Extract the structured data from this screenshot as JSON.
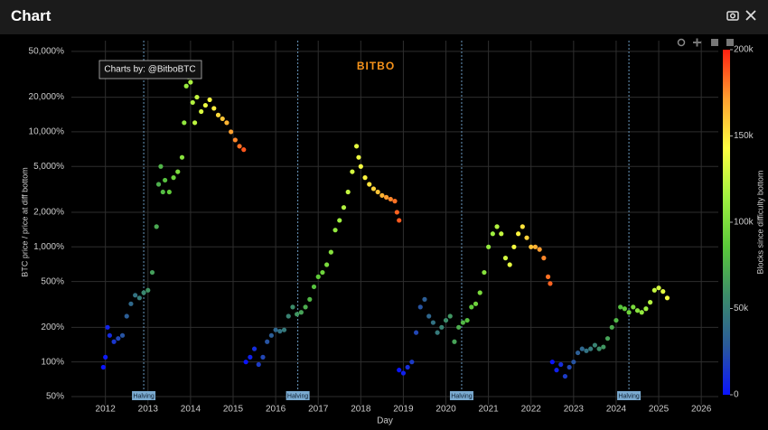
{
  "header": {
    "title": "Chart"
  },
  "chart_data": {
    "type": "scatter",
    "watermark": "Charts by: @BitboBTC",
    "logo": "BITBO",
    "xlabel": "Day",
    "ylabel": "BTC price / price at diff bottom",
    "xlim": [
      2011.2,
      2026.4
    ],
    "xticks": [
      2012,
      2013,
      2014,
      2015,
      2016,
      2017,
      2018,
      2019,
      2020,
      2021,
      2022,
      2023,
      2024,
      2025,
      2026
    ],
    "ylim": [
      42.5,
      62000
    ],
    "ylog": true,
    "grid": true,
    "yticks": [
      {
        "value": 50,
        "label": "50%"
      },
      {
        "value": 100,
        "label": "100%"
      },
      {
        "value": 200,
        "label": "200%"
      },
      {
        "value": 500,
        "label": "500%"
      },
      {
        "value": 1000,
        "label": "1,000%"
      },
      {
        "value": 2000,
        "label": "2,000%"
      },
      {
        "value": 5000,
        "label": "5,000%"
      },
      {
        "value": 10000,
        "label": "10,000%"
      },
      {
        "value": 20000,
        "label": "20,000%"
      },
      {
        "value": 50000,
        "label": "50,000%"
      }
    ],
    "colorbar": {
      "title": "Blocks since difficulty bottom",
      "clim": [
        0,
        200000
      ],
      "ticks": [
        0,
        {
          "value": 50000,
          "label": "50k"
        },
        {
          "value": 100000,
          "label": "100k"
        },
        {
          "value": 150000,
          "label": "150k"
        },
        {
          "value": 200000,
          "label": "200k"
        }
      ],
      "colorscale": [
        "#0a14ff",
        "#2a5a9a",
        "#3c8c6a",
        "#5ac83a",
        "#a0f040",
        "#ffff40",
        "#ffa030",
        "#ff2010"
      ]
    },
    "halvings": {
      "x": [
        2012.9,
        2016.52,
        2020.37,
        2024.3
      ],
      "labels": [
        "Halving",
        "Halving",
        "Halving",
        "Halving"
      ]
    },
    "series": [
      {
        "x": [
          2011.95,
          2012.0,
          2012.05,
          2012.1,
          2012.2,
          2012.3,
          2012.4,
          2012.5,
          2012.6,
          2012.7,
          2012.8,
          2012.9,
          2013.0,
          2013.1,
          2013.2,
          2013.25,
          2013.3,
          2013.35,
          2013.4,
          2013.5,
          2013.6,
          2013.7,
          2013.8,
          2013.85,
          2013.9,
          2013.95,
          2014.0,
          2014.05,
          2014.1,
          2014.15,
          2014.25,
          2014.35,
          2014.45,
          2014.55,
          2014.65,
          2014.75,
          2014.85,
          2014.95,
          2015.05,
          2015.15,
          2015.25
        ],
        "values": [
          90,
          110,
          200,
          170,
          150,
          160,
          170,
          250,
          320,
          380,
          360,
          400,
          420,
          600,
          1500,
          3500,
          5000,
          3000,
          3800,
          3000,
          4000,
          4500,
          6000,
          12000,
          25000,
          30000,
          27000,
          18000,
          12000,
          20000,
          15000,
          17000,
          19000,
          16000,
          14000,
          13000,
          12000,
          10000,
          8500,
          7500,
          7000
        ],
        "c": [
          0,
          3000,
          6000,
          9000,
          14000,
          20000,
          26000,
          31000,
          37000,
          43000,
          48000,
          54000,
          60000,
          66000,
          71000,
          74000,
          77000,
          80000,
          83000,
          88000,
          94000,
          100000,
          105000,
          108000,
          111000,
          114000,
          117000,
          120000,
          123000,
          125000,
          131000,
          137000,
          143000,
          148000,
          154000,
          160000,
          165000,
          171000,
          177000,
          182000,
          188000
        ]
      },
      {
        "x": [
          2015.3,
          2015.4,
          2015.5,
          2015.6,
          2015.7,
          2015.8,
          2015.9,
          2016.0,
          2016.1,
          2016.2,
          2016.3,
          2016.4,
          2016.5,
          2016.6,
          2016.7,
          2016.8,
          2016.9,
          2017.0,
          2017.1,
          2017.2,
          2017.3,
          2017.4,
          2017.5,
          2017.6,
          2017.7,
          2017.8,
          2017.9,
          2017.95,
          2018.0,
          2018.1,
          2018.2,
          2018.3,
          2018.4,
          2018.5,
          2018.6,
          2018.7,
          2018.8,
          2018.85,
          2018.9
        ],
        "values": [
          100,
          110,
          130,
          95,
          110,
          150,
          170,
          190,
          185,
          190,
          250,
          300,
          260,
          270,
          300,
          350,
          450,
          550,
          600,
          700,
          900,
          1400,
          1700,
          2200,
          3000,
          4500,
          7500,
          6000,
          5000,
          4000,
          3500,
          3200,
          3000,
          2800,
          2700,
          2600,
          2500,
          2000,
          1700
        ],
        "c": [
          0,
          5000,
          10000,
          16000,
          21000,
          26000,
          31000,
          36000,
          42000,
          47000,
          52000,
          57000,
          62000,
          68000,
          73000,
          78000,
          83000,
          88000,
          94000,
          99000,
          104000,
          109000,
          114000,
          120000,
          125000,
          130000,
          135000,
          138000,
          140000,
          146000,
          151000,
          156000,
          161000,
          166000,
          172000,
          177000,
          182000,
          185000,
          187000
        ]
      },
      {
        "x": [
          2018.9,
          2019.0,
          2019.1,
          2019.2,
          2019.3,
          2019.4,
          2019.5,
          2019.6,
          2019.7,
          2019.8,
          2019.9,
          2020.0,
          2020.1,
          2020.2,
          2020.3,
          2020.4,
          2020.5,
          2020.6,
          2020.7,
          2020.8,
          2020.9,
          2021.0,
          2021.1,
          2021.2,
          2021.3,
          2021.4,
          2021.5,
          2021.6,
          2021.7,
          2021.8,
          2021.9,
          2022.0,
          2022.1,
          2022.2,
          2022.3,
          2022.4,
          2022.45
        ],
        "values": [
          85,
          80,
          90,
          100,
          180,
          300,
          350,
          250,
          220,
          180,
          200,
          230,
          250,
          150,
          200,
          220,
          230,
          300,
          320,
          400,
          600,
          1000,
          1300,
          1500,
          1300,
          800,
          700,
          1000,
          1300,
          1500,
          1200,
          1000,
          1000,
          950,
          800,
          550,
          480
        ],
        "c": [
          0,
          5000,
          10000,
          16000,
          21000,
          26000,
          31000,
          36000,
          42000,
          47000,
          52000,
          57000,
          62000,
          68000,
          73000,
          78000,
          83000,
          88000,
          94000,
          99000,
          104000,
          109000,
          114000,
          120000,
          125000,
          130000,
          135000,
          140000,
          146000,
          151000,
          156000,
          161000,
          166000,
          172000,
          177000,
          182000,
          185000
        ]
      },
      {
        "x": [
          2022.5,
          2022.6,
          2022.7,
          2022.8,
          2022.9,
          2023.0,
          2023.1,
          2023.2,
          2023.3,
          2023.4,
          2023.5,
          2023.6,
          2023.7,
          2023.8,
          2023.9,
          2024.0,
          2024.1,
          2024.2,
          2024.3,
          2024.4,
          2024.5,
          2024.6,
          2024.7,
          2024.8,
          2024.9,
          2025.0,
          2025.1,
          2025.2
        ],
        "values": [
          100,
          85,
          95,
          75,
          90,
          100,
          120,
          130,
          125,
          130,
          140,
          130,
          135,
          160,
          200,
          230,
          300,
          290,
          270,
          300,
          280,
          270,
          290,
          330,
          420,
          440,
          410,
          360
        ],
        "c": [
          0,
          5000,
          10000,
          16000,
          21000,
          26000,
          31000,
          36000,
          42000,
          47000,
          52000,
          57000,
          62000,
          68000,
          73000,
          78000,
          83000,
          88000,
          94000,
          99000,
          104000,
          109000,
          114000,
          120000,
          125000,
          130000,
          135000,
          140000
        ]
      }
    ]
  }
}
